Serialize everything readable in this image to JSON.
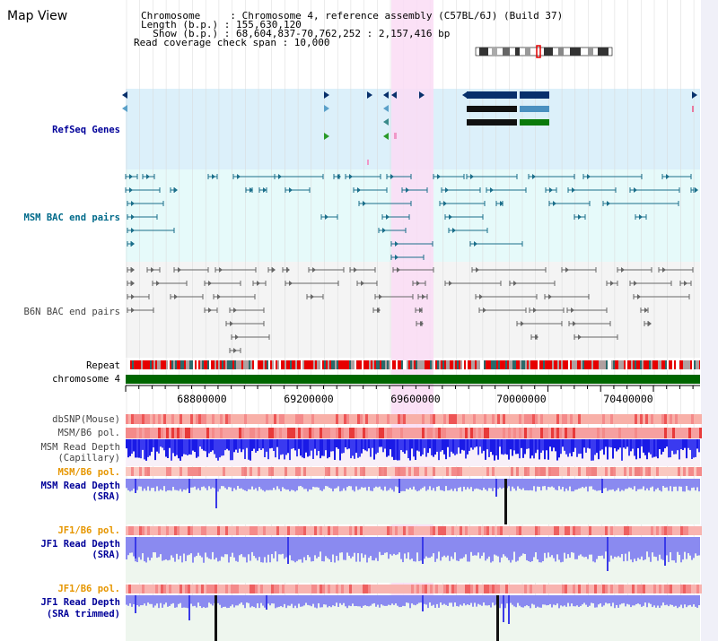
{
  "title": "Map View",
  "header": {
    "line1": "Chromosome     : Chromosome 4, reference assembly (C57BL/6J) (Build 37)",
    "line2": "Length (b.p.) : 155,630,120",
    "line3": "  Show (b.p.) : 68,604,837-70,762,252 : 2,157,416 bp",
    "line4": "Read coverage check span : 10,000"
  },
  "tracks": {
    "refseq": "RefSeq Genes",
    "msm_bac": "MSM BAC end pairs",
    "b6n_bac": "B6N BAC end pairs",
    "repeat": "Repeat",
    "chromosome": "chromosome 4",
    "dbsnp": "dbSNP(Mouse)",
    "msm_b6_pol_1": "MSM/B6 pol.",
    "msm_depth_cap_1": "MSM Read Depth",
    "msm_depth_cap_2": "(Capillary)",
    "msm_b6_pol_2": "MSM/B6 pol.",
    "msm_depth_sra_1": "MSM Read Depth",
    "msm_depth_sra_2": "(SRA)",
    "jf1_b6_pol_1": "JF1/B6 pol.",
    "jf1_depth_sra_1": "JF1 Read Depth",
    "jf1_depth_sra_2": "(SRA)",
    "jf1_b6_pol_2": "JF1/B6 pol.",
    "jf1_depth_trim_1": "JF1 Read Depth",
    "jf1_depth_trim_2": "(SRA trimmed)"
  },
  "axis": {
    "ticks": [
      "68800000",
      "69200000",
      "69600000",
      "70000000",
      "70400000"
    ]
  },
  "colors": {
    "refseq_bg": "#dcf0fa",
    "msm_bac_bg": "#e6fafa",
    "highlight": "#fadcf5",
    "msm_label": "#006a8a",
    "gene_label": "#000099",
    "orange_label": "#e69600",
    "chromosome_green": "#006600",
    "repeat_red": "#e60000"
  }
}
